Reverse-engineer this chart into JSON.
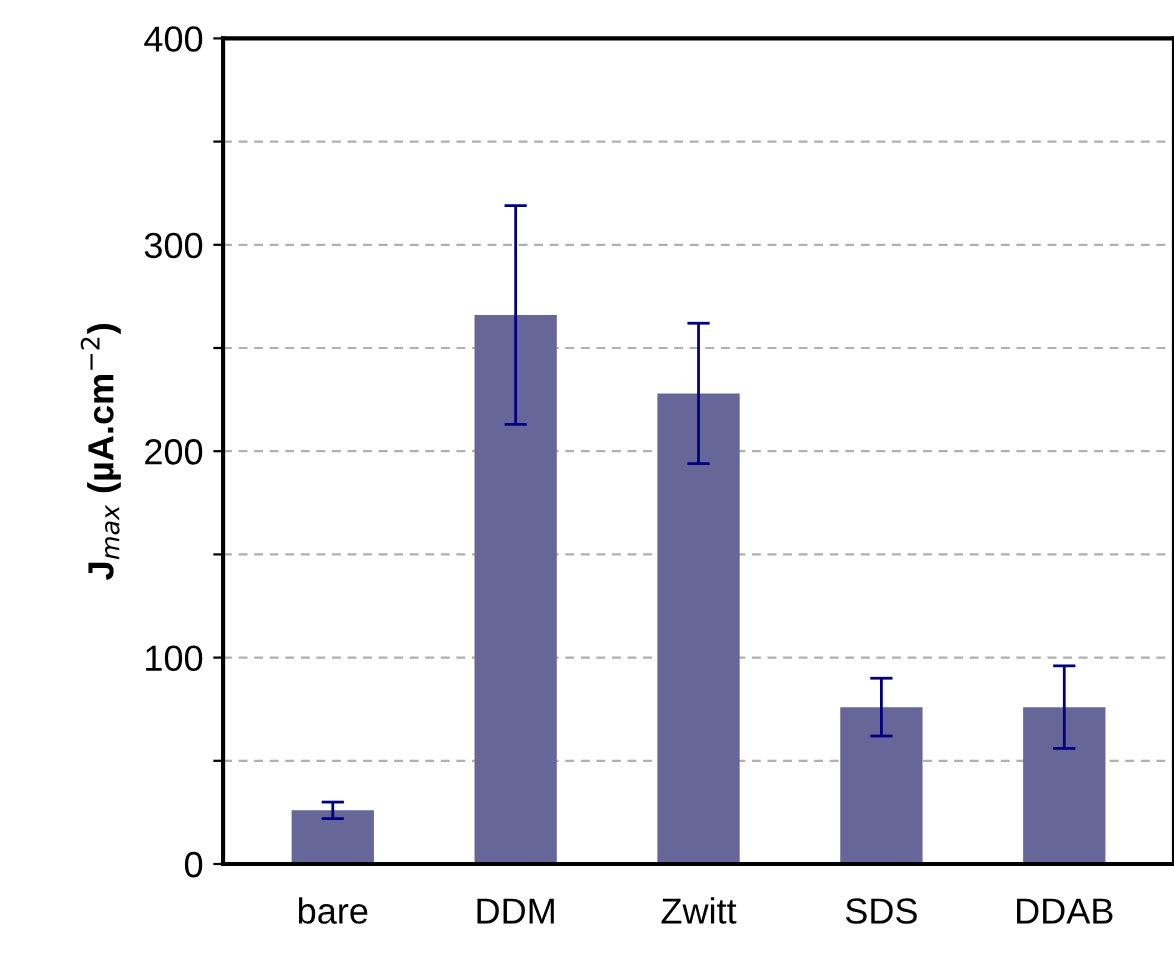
{
  "chart_data": {
    "type": "bar",
    "ylabel": "J$_{max}$ (µA.cm$^{−2}$)",
    "categories": [
      "bare",
      "DDM",
      "Zwitt",
      "SDS",
      "DDAB"
    ],
    "values": [
      26,
      266,
      228,
      76,
      76
    ],
    "errors": [
      4,
      53,
      34,
      14,
      20
    ],
    "color": "#666699",
    "ylim": [
      0,
      400
    ],
    "yticks": [
      0,
      {
        "value": 50,
        "label": null
      },
      100,
      {
        "value": 150,
        "label": null
      },
      200,
      {
        "value": 250,
        "label": null
      },
      300,
      {
        "value": 350,
        "label": null
      },
      400
    ],
    "grid": "y"
  }
}
